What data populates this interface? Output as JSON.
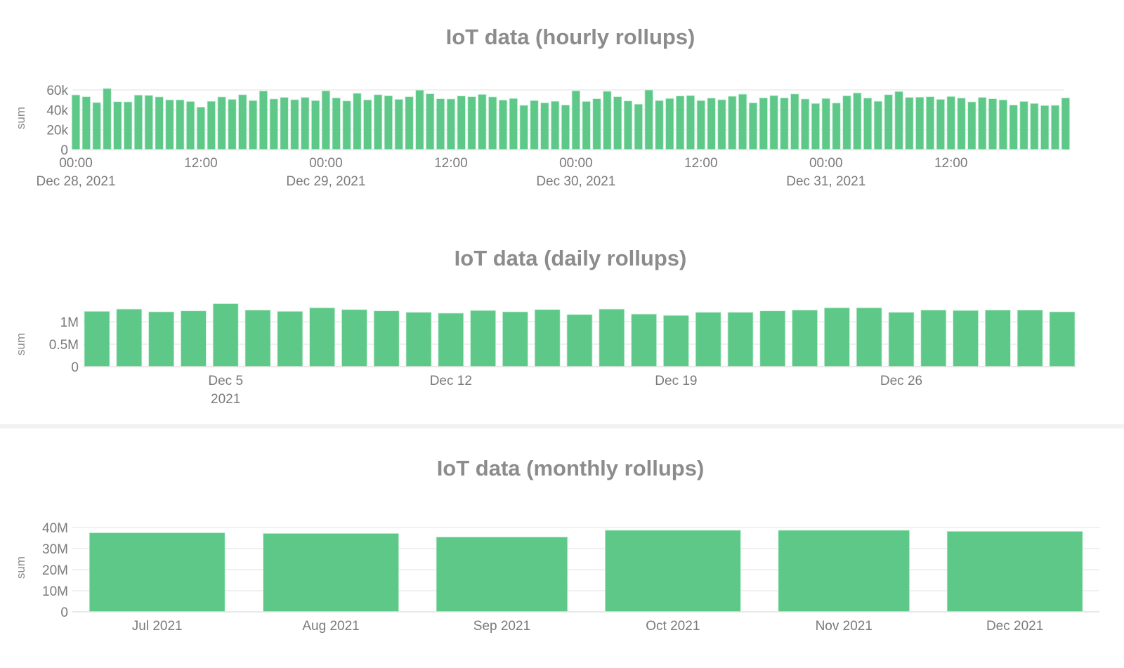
{
  "colors": {
    "bar": "#5ec888",
    "bar_edge": "#c9f0d8",
    "title": "#8c8c8c",
    "tick": "#7a7a7a",
    "grid": "#ececec",
    "separator": "#f0f0f0"
  },
  "chart_data": [
    {
      "type": "bar",
      "title": "IoT data (hourly rollups)",
      "ylabel": "sum",
      "xlabel": "",
      "x_start": "2021-12-28 00:00",
      "x_interval": "1 hour",
      "ylim": [
        0,
        60000
      ],
      "yticks": [
        {
          "v": 0,
          "label": "0"
        },
        {
          "v": 20000,
          "label": "20k"
        },
        {
          "v": 40000,
          "label": "40k"
        },
        {
          "v": 60000,
          "label": "60k"
        }
      ],
      "xticks": [
        {
          "hour": 0,
          "label": "00:00",
          "sub": "Dec 28, 2021"
        },
        {
          "hour": 12,
          "label": "12:00",
          "sub": ""
        },
        {
          "hour": 24,
          "label": "00:00",
          "sub": "Dec 29, 2021"
        },
        {
          "hour": 36,
          "label": "12:00",
          "sub": ""
        },
        {
          "hour": 48,
          "label": "00:00",
          "sub": "Dec 30, 2021"
        },
        {
          "hour": 60,
          "label": "12:00",
          "sub": ""
        },
        {
          "hour": 72,
          "label": "00:00",
          "sub": "Dec 31, 2021"
        },
        {
          "hour": 84,
          "label": "12:00",
          "sub": ""
        }
      ],
      "grid": true,
      "values": [
        55000,
        53200,
        47300,
        61400,
        48200,
        48000,
        54800,
        54500,
        53000,
        50000,
        50000,
        48400,
        42700,
        48600,
        53000,
        50500,
        55200,
        49300,
        58900,
        50900,
        52500,
        50200,
        52500,
        49300,
        59100,
        52000,
        48900,
        56600,
        50000,
        55200,
        54100,
        50500,
        53200,
        59800,
        56100,
        51100,
        50900,
        53900,
        53200,
        55500,
        53000,
        49800,
        51400,
        44500,
        49300,
        47000,
        48600,
        44800,
        59100,
        48400,
        51100,
        58600,
        53200,
        48900,
        45700,
        60000,
        49300,
        51400,
        53900,
        54300,
        49300,
        51800,
        50200,
        53600,
        55700,
        47000,
        52000,
        54300,
        52000,
        55900,
        50900,
        46400,
        51400,
        46800,
        54100,
        57000,
        51800,
        48600,
        55200,
        58400,
        52500,
        52700,
        53200,
        50500,
        53400,
        51800,
        48000,
        52500,
        51100,
        50000,
        44800,
        48400,
        46400,
        44300,
        44500,
        52000
      ]
    },
    {
      "type": "bar",
      "title": "IoT data (daily rollups)",
      "ylabel": "sum",
      "xlabel": "",
      "x_start": "2021-12-01",
      "x_interval": "1 day",
      "ylim": [
        0,
        1400000
      ],
      "yticks": [
        {
          "v": 0,
          "label": "0"
        },
        {
          "v": 500000,
          "label": "0.5M"
        },
        {
          "v": 1000000,
          "label": "1M"
        }
      ],
      "xticks": [
        {
          "day": 5,
          "label": "Dec 5",
          "sub": "2021"
        },
        {
          "day": 12,
          "label": "Dec 12",
          "sub": ""
        },
        {
          "day": 19,
          "label": "Dec 19",
          "sub": ""
        },
        {
          "day": 26,
          "label": "Dec 26",
          "sub": ""
        }
      ],
      "grid": true,
      "values": [
        1230000,
        1280000,
        1220000,
        1240000,
        1400000,
        1260000,
        1230000,
        1310000,
        1270000,
        1240000,
        1210000,
        1190000,
        1250000,
        1220000,
        1270000,
        1160000,
        1280000,
        1170000,
        1140000,
        1210000,
        1210000,
        1240000,
        1260000,
        1310000,
        1310000,
        1210000,
        1260000,
        1250000,
        1260000,
        1260000,
        1220000
      ]
    },
    {
      "type": "bar",
      "title": "IoT data (monthly rollups)",
      "ylabel": "sum",
      "xlabel": "",
      "ylim": [
        0,
        40000000
      ],
      "yticks": [
        {
          "v": 0,
          "label": "0"
        },
        {
          "v": 10000000,
          "label": "10M"
        },
        {
          "v": 20000000,
          "label": "20M"
        },
        {
          "v": 30000000,
          "label": "30M"
        },
        {
          "v": 40000000,
          "label": "40M"
        }
      ],
      "categories": [
        "Jul 2021",
        "Aug 2021",
        "Sep 2021",
        "Oct 2021",
        "Nov 2021",
        "Dec 2021"
      ],
      "month_days": [
        31,
        31,
        30,
        31,
        30,
        31
      ],
      "grid": true,
      "values": [
        37500000,
        37200000,
        35500000,
        38700000,
        38700000,
        38200000
      ]
    }
  ]
}
